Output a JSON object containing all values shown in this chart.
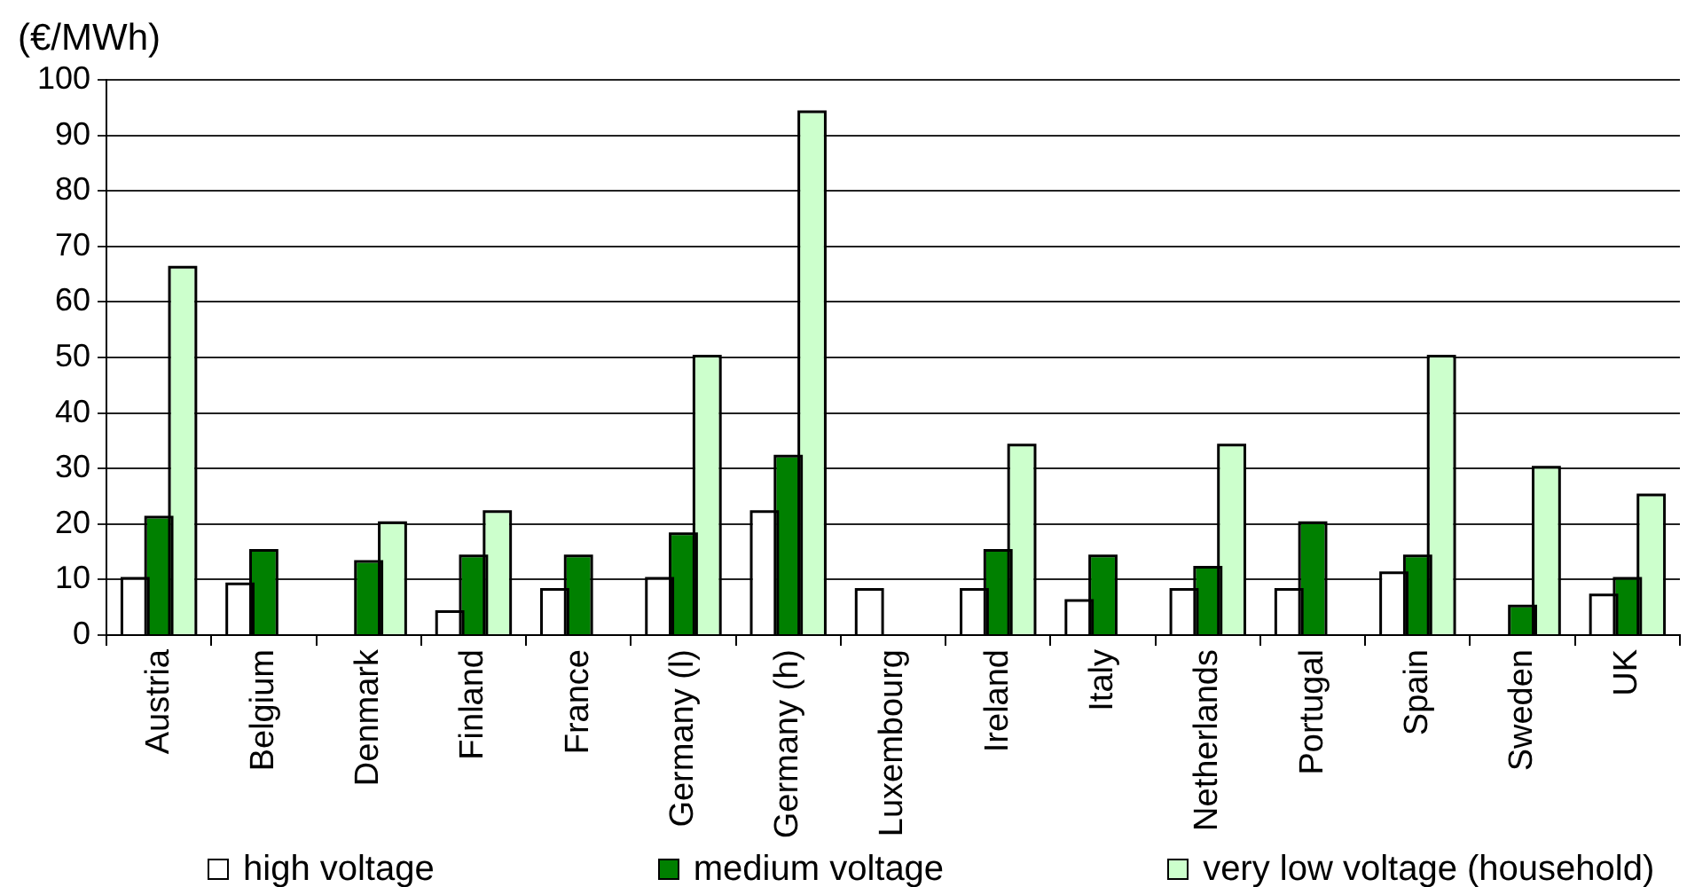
{
  "chart_data": {
    "type": "bar",
    "ylabel": "(€/MWh)",
    "categories": [
      "Austria",
      "Belgium",
      "Denmark",
      "Finland",
      "France",
      "Germany (l)",
      "Germany (h)",
      "Luxembourg",
      "Ireland",
      "Italy",
      "Netherlands",
      "Portugal",
      "Spain",
      "Sweden",
      "UK"
    ],
    "series": [
      {
        "name": "high voltage",
        "color": "#ffffff",
        "values": [
          10,
          9,
          null,
          4,
          8,
          10,
          22,
          8,
          8,
          6,
          8,
          8,
          11,
          null,
          7
        ]
      },
      {
        "name": "medium voltage",
        "color": "#008000",
        "values": [
          21,
          15,
          13,
          14,
          14,
          18,
          32,
          null,
          15,
          14,
          12,
          20,
          14,
          5,
          10
        ]
      },
      {
        "name": "very low voltage (household)",
        "color": "#ccffcc",
        "values": [
          66,
          null,
          20,
          22,
          null,
          50,
          94,
          null,
          34,
          null,
          34,
          null,
          50,
          30,
          25
        ]
      }
    ],
    "ylim": [
      0,
      100
    ],
    "yticks": [
      0,
      10,
      20,
      30,
      40,
      50,
      60,
      70,
      80,
      90,
      100
    ],
    "grid": "y",
    "legend": "bottom"
  }
}
